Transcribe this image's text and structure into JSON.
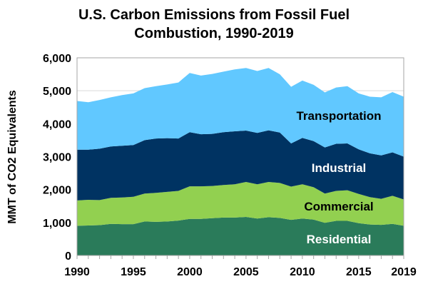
{
  "chart_data": {
    "type": "area",
    "stacked": true,
    "title_line1": "U.S. Carbon Emissions  from Fossil Fuel",
    "title_line2": "Combustion,  1990-2019",
    "xlabel": "",
    "ylabel": "MMT of CO2 Equivalents",
    "ylim": [
      0,
      6000
    ],
    "xlim": [
      1990,
      2019
    ],
    "y_ticks": [
      "0",
      "1,000",
      "2,000",
      "3,000",
      "4,000",
      "5,000",
      "6,000"
    ],
    "x_ticks": [
      "1990",
      "1995",
      "2000",
      "2005",
      "2010",
      "2015",
      "2019"
    ],
    "grid": true,
    "legend": "inline labels",
    "x": [
      1990,
      1991,
      1992,
      1993,
      1994,
      1995,
      1996,
      1997,
      1998,
      1999,
      2000,
      2001,
      2002,
      2003,
      2004,
      2005,
      2006,
      2007,
      2008,
      2009,
      2010,
      2011,
      2012,
      2013,
      2014,
      2015,
      2016,
      2017,
      2018,
      2019
    ],
    "series": [
      {
        "name": "Residential",
        "color": "#2a7b5a",
        "label_color": "#ffffff",
        "values": [
          900,
          910,
          920,
          960,
          950,
          950,
          1030,
          1020,
          1030,
          1060,
          1110,
          1110,
          1130,
          1150,
          1150,
          1170,
          1120,
          1160,
          1140,
          1080,
          1120,
          1090,
          990,
          1050,
          1050,
          980,
          940,
          930,
          960,
          900
        ]
      },
      {
        "name": "Commercial",
        "color": "#92d050",
        "label_color": "#000000",
        "values": [
          770,
          780,
          760,
          790,
          810,
          830,
          850,
          880,
          900,
          900,
          990,
          990,
          980,
          990,
          1010,
          1060,
          1040,
          1070,
          1060,
          1010,
          1040,
          980,
          890,
          910,
          930,
          890,
          830,
          790,
          850,
          800
        ]
      },
      {
        "name": "Industrial",
        "color": "#003362",
        "label_color": "#ffffff",
        "values": [
          1540,
          1520,
          1560,
          1560,
          1570,
          1570,
          1620,
          1650,
          1630,
          1590,
          1640,
          1580,
          1580,
          1600,
          1610,
          1560,
          1560,
          1570,
          1530,
          1310,
          1410,
          1400,
          1400,
          1430,
          1420,
          1350,
          1330,
          1320,
          1320,
          1300
        ]
      },
      {
        "name": "Transportation",
        "color": "#61c8ff",
        "label_color": "#000000",
        "values": [
          1480,
          1440,
          1480,
          1490,
          1540,
          1570,
          1580,
          1590,
          1630,
          1700,
          1800,
          1780,
          1820,
          1840,
          1880,
          1900,
          1880,
          1890,
          1770,
          1720,
          1740,
          1710,
          1670,
          1710,
          1740,
          1700,
          1720,
          1760,
          1830,
          1820
        ]
      }
    ]
  }
}
